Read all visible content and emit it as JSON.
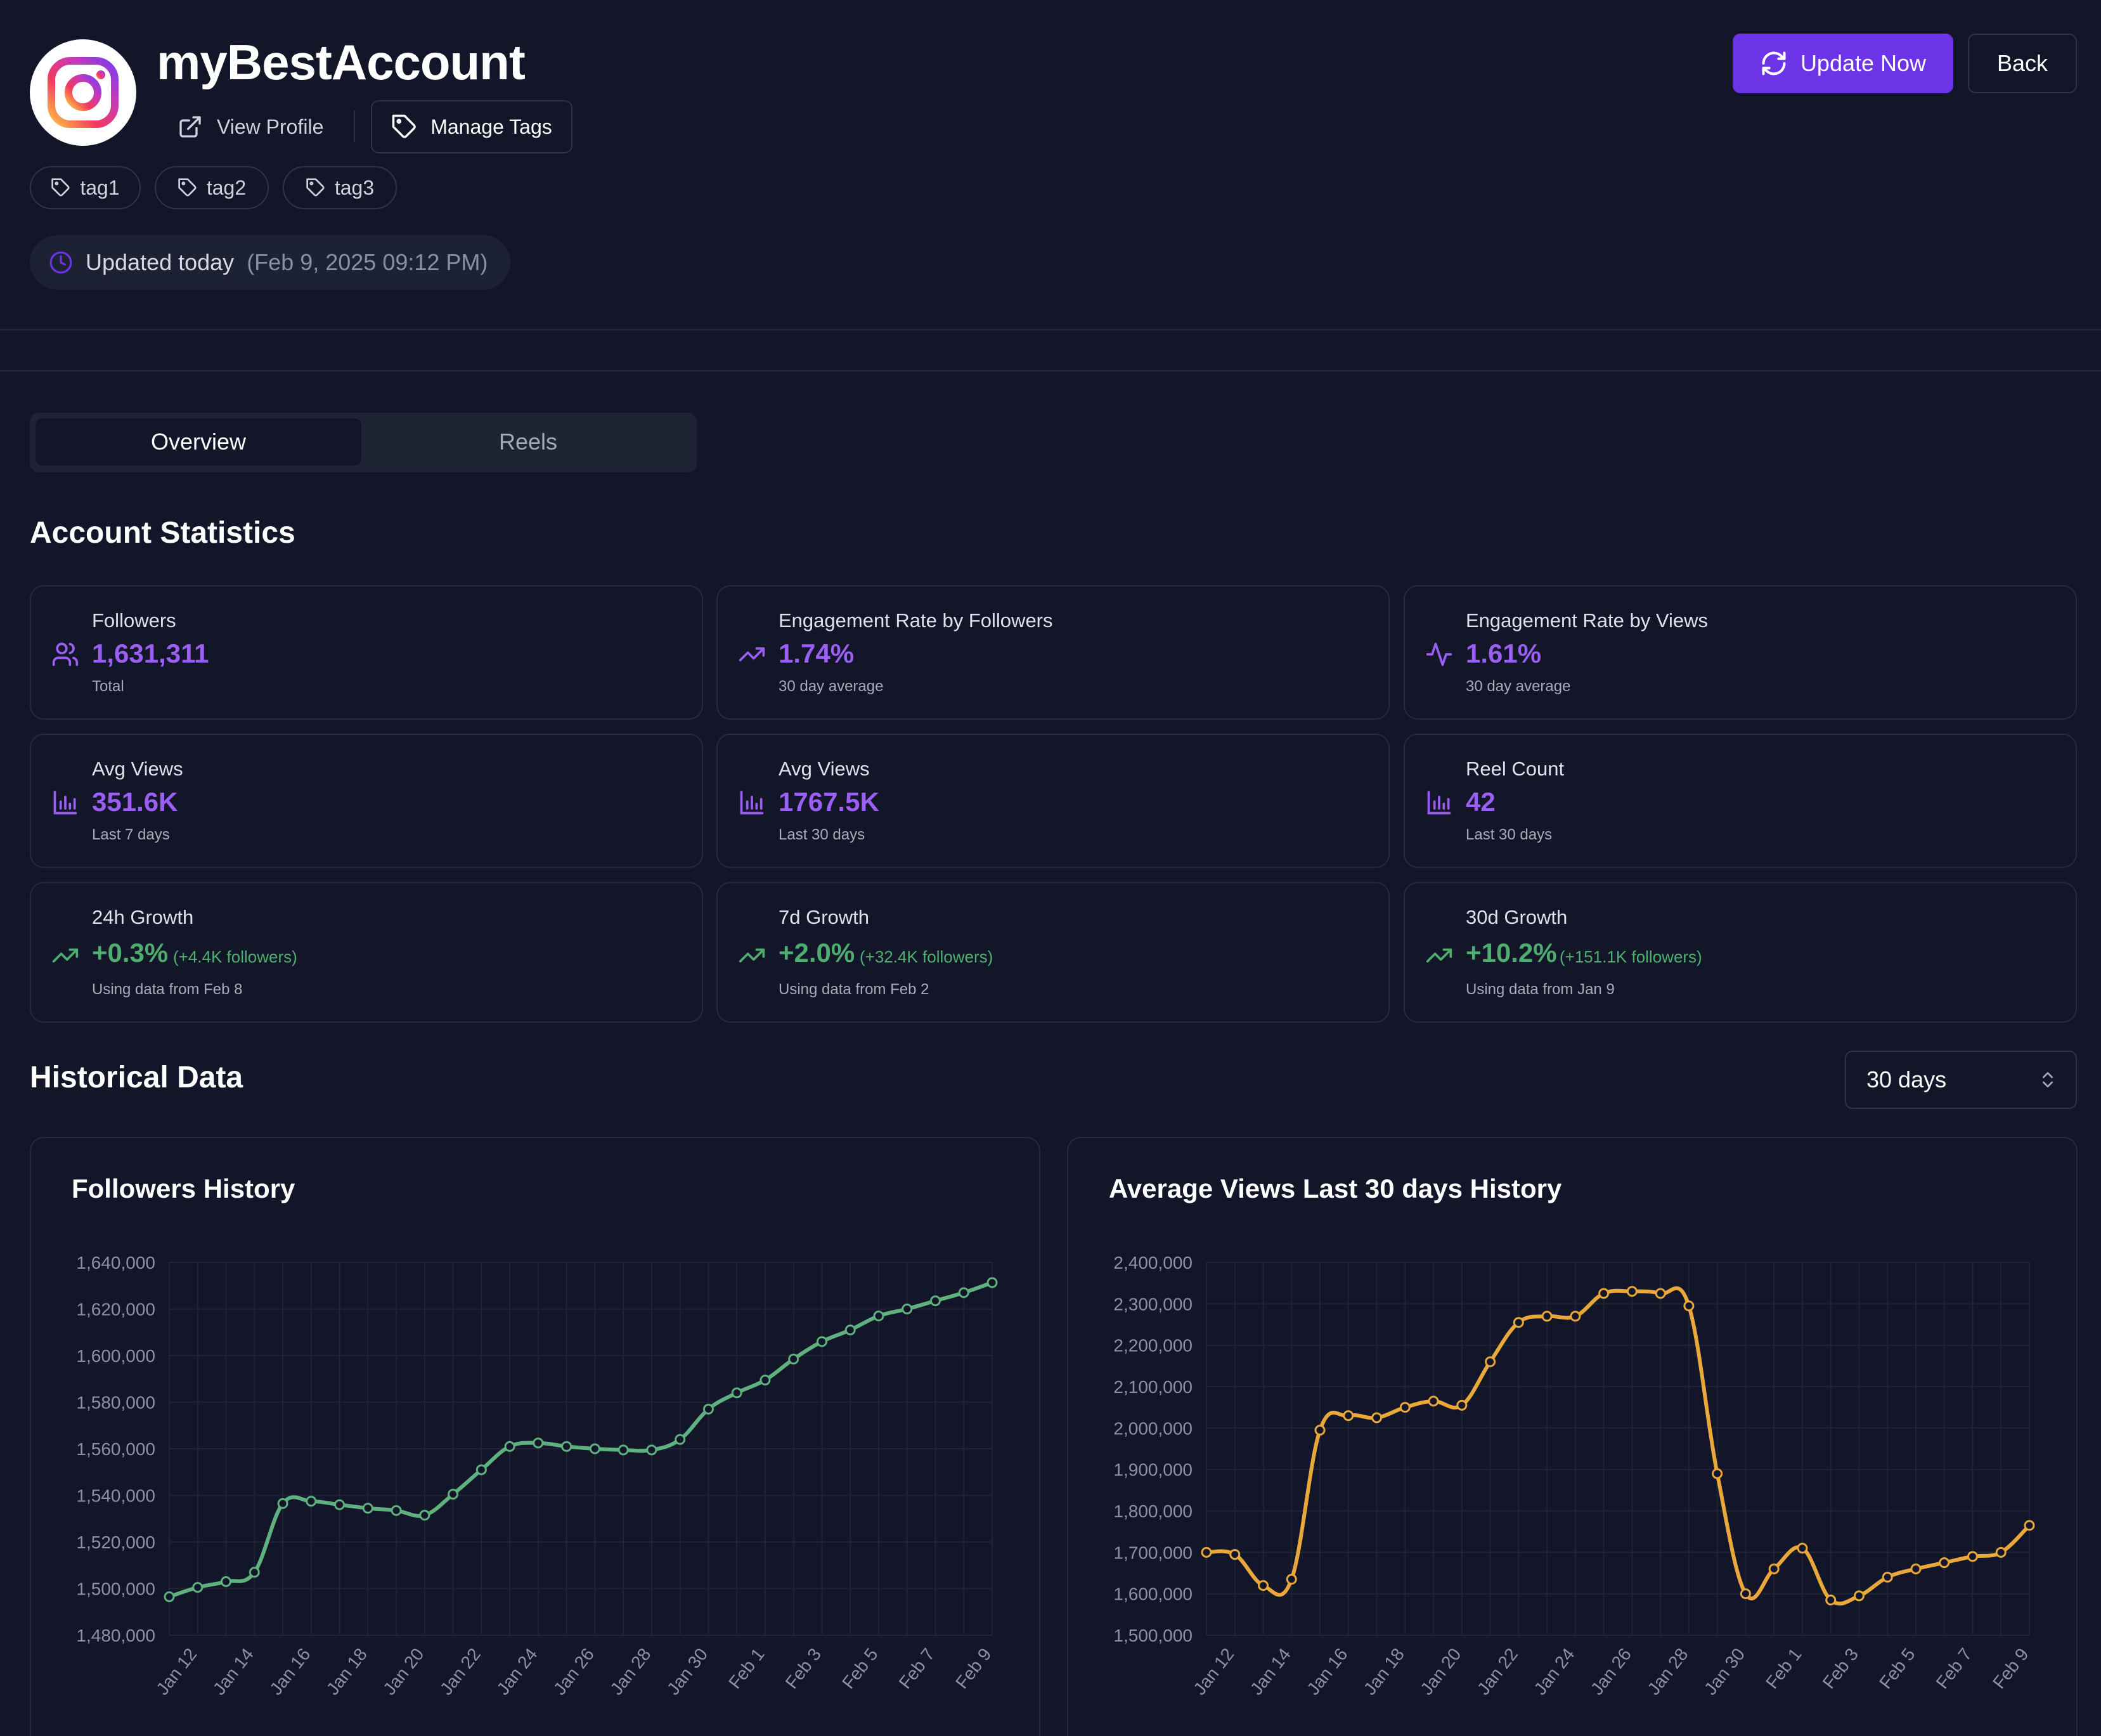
{
  "header": {
    "account_name": "myBestAccount",
    "view_profile_label": "View Profile",
    "manage_tags_label": "Manage Tags",
    "tags": [
      "tag1",
      "tag2",
      "tag3"
    ],
    "updated_label": "Updated today",
    "updated_timestamp": "(Feb 9, 2025 09:12 PM)",
    "update_now_label": "Update Now",
    "back_label": "Back"
  },
  "tabs": [
    {
      "label": "Overview",
      "active": true
    },
    {
      "label": "Reels",
      "active": false
    }
  ],
  "stats": {
    "title": "Account Statistics",
    "cards": [
      {
        "label": "Followers",
        "value": "1,631,311",
        "sub": "Total",
        "icon": "users-icon"
      },
      {
        "label": "Engagement Rate by Followers",
        "value": "1.74%",
        "sub": "30 day average",
        "icon": "trending-up-icon"
      },
      {
        "label": "Engagement Rate by Views",
        "value": "1.61%",
        "sub": "30 day average",
        "icon": "activity-icon"
      },
      {
        "label": "Avg Views",
        "value": "351.6K",
        "sub": "Last 7 days",
        "icon": "bar-chart-icon"
      },
      {
        "label": "Avg Views",
        "value": "1767.5K",
        "sub": "Last 30 days",
        "icon": "bar-chart-icon"
      },
      {
        "label": "Reel Count",
        "value": "42",
        "sub": "Last 30 days",
        "icon": "bar-chart-icon"
      },
      {
        "label": "24h Growth",
        "value": "+0.3%",
        "note": "(+4.4K followers)",
        "sub": "Using data from Feb 8",
        "icon": "trending-up-icon"
      },
      {
        "label": "7d Growth",
        "value": "+2.0%",
        "note": "(+32.4K followers)",
        "sub": "Using data from Feb 2",
        "icon": "trending-up-icon"
      },
      {
        "label": "30d Growth",
        "value": "+10.2%",
        "note": "(+151.1K followers)",
        "sub": "Using data from Jan 9",
        "icon": "trending-up-icon"
      }
    ]
  },
  "historical": {
    "title": "Historical Data",
    "range_selected": "30 days"
  },
  "colors": {
    "accent": "#6d33e6",
    "stat_value": "#9b5ff5",
    "growth": "#4ead6f",
    "followers_line": "#5fb27f",
    "views_line": "#eba83a"
  },
  "chart_data": [
    {
      "type": "line",
      "title": "Followers History",
      "x": [
        "Jan 11",
        "Jan 12",
        "Jan 13",
        "Jan 14",
        "Jan 15",
        "Jan 16",
        "Jan 17",
        "Jan 18",
        "Jan 19",
        "Jan 20",
        "Jan 21",
        "Jan 22",
        "Jan 23",
        "Jan 24",
        "Jan 25",
        "Jan 26",
        "Jan 27",
        "Jan 28",
        "Jan 29",
        "Jan 30",
        "Jan 31",
        "Feb 1",
        "Feb 2",
        "Feb 3",
        "Feb 4",
        "Feb 5",
        "Feb 6",
        "Feb 7",
        "Feb 8",
        "Feb 9"
      ],
      "x_tick_labels": [
        "Jan 12",
        "Jan 14",
        "Jan 16",
        "Jan 18",
        "Jan 20",
        "Jan 22",
        "Jan 24",
        "Jan 26",
        "Jan 28",
        "Jan 30",
        "Feb 1",
        "Feb 3",
        "Feb 5",
        "Feb 7",
        "Feb 9"
      ],
      "series": [
        {
          "name": "Followers",
          "color": "#5fb27f",
          "values": [
            1496500,
            1500500,
            1503000,
            1507000,
            1536500,
            1537500,
            1536000,
            1534500,
            1533500,
            1531500,
            1540500,
            1551000,
            1561000,
            1562500,
            1561000,
            1560000,
            1559500,
            1559500,
            1564000,
            1577000,
            1584000,
            1589500,
            1598500,
            1606000,
            1611000,
            1617000,
            1620000,
            1623500,
            1627000,
            1631311
          ]
        }
      ],
      "ylim": [
        1480000,
        1640000
      ],
      "y_ticks": [
        1480000,
        1500000,
        1520000,
        1540000,
        1560000,
        1580000,
        1600000,
        1620000,
        1640000
      ],
      "y_tick_labels": [
        "1,480,000",
        "1,500,000",
        "1,520,000",
        "1,540,000",
        "1,560,000",
        "1,580,000",
        "1,600,000",
        "1,620,000",
        "1,640,000"
      ],
      "xlabel": "",
      "ylabel": "",
      "grid": true
    },
    {
      "type": "line",
      "title": "Average Views Last 30 days History",
      "x": [
        "Jan 11",
        "Jan 12",
        "Jan 13",
        "Jan 14",
        "Jan 15",
        "Jan 16",
        "Jan 17",
        "Jan 18",
        "Jan 19",
        "Jan 20",
        "Jan 21",
        "Jan 22",
        "Jan 23",
        "Jan 24",
        "Jan 25",
        "Jan 26",
        "Jan 27",
        "Jan 28",
        "Jan 29",
        "Jan 30",
        "Jan 31",
        "Feb 1",
        "Feb 2",
        "Feb 3",
        "Feb 4",
        "Feb 5",
        "Feb 6",
        "Feb 7",
        "Feb 8",
        "Feb 9"
      ],
      "x_tick_labels": [
        "Jan 12",
        "Jan 14",
        "Jan 16",
        "Jan 18",
        "Jan 20",
        "Jan 22",
        "Jan 24",
        "Jan 26",
        "Jan 28",
        "Jan 30",
        "Feb 1",
        "Feb 3",
        "Feb 5",
        "Feb 7",
        "Feb 9"
      ],
      "series": [
        {
          "name": "Average Views",
          "color": "#eba83a",
          "values": [
            1700000,
            1695000,
            1620000,
            1635000,
            1995000,
            2030000,
            2025000,
            2050000,
            2065000,
            2055000,
            2160000,
            2255000,
            2270000,
            2270000,
            2325000,
            2330000,
            2325000,
            2295000,
            1890000,
            1600000,
            1660000,
            1710000,
            1585000,
            1595000,
            1640000,
            1660000,
            1675000,
            1690000,
            1700000,
            1765000
          ]
        }
      ],
      "ylim": [
        1500000,
        2400000
      ],
      "y_ticks": [
        1500000,
        1600000,
        1700000,
        1800000,
        1900000,
        2000000,
        2100000,
        2200000,
        2300000,
        2400000
      ],
      "y_tick_labels": [
        "1,500,000",
        "1,600,000",
        "1,700,000",
        "1,800,000",
        "1,900,000",
        "2,000,000",
        "2,100,000",
        "2,200,000",
        "2,300,000",
        "2,400,000"
      ],
      "xlabel": "",
      "ylabel": "",
      "grid": true
    }
  ]
}
